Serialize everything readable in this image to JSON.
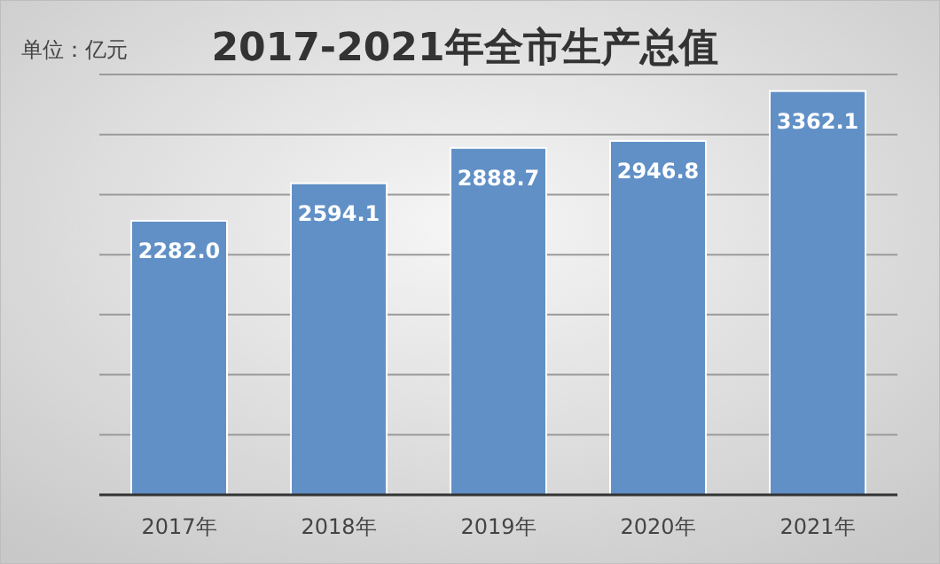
{
  "chart_data": {
    "type": "bar",
    "title": "2017-2021年全市生产总值",
    "annotations": [
      "单位：亿元"
    ],
    "categories": [
      "2017年",
      "2018年",
      "2019年",
      "2020年",
      "2021年"
    ],
    "values": [
      2282.0,
      2594.1,
      2888.7,
      2946.8,
      3362.1
    ],
    "value_labels": [
      "2282.0",
      "2594.1",
      "2888.7",
      "2946.8",
      "3362.1"
    ],
    "color": "#6190c6",
    "ylim": [
      0,
      3500
    ],
    "yticks": [
      {
        "value": 0,
        "label": null
      },
      {
        "value": 500,
        "label": null
      },
      {
        "value": 1000,
        "label": null
      },
      {
        "value": 1500,
        "label": null
      },
      {
        "value": 2000,
        "label": null
      },
      {
        "value": 2500,
        "label": null
      },
      {
        "value": 3000,
        "label": null
      },
      {
        "value": 3500,
        "label": null
      }
    ],
    "tick_labels": "x",
    "grid": "y"
  }
}
